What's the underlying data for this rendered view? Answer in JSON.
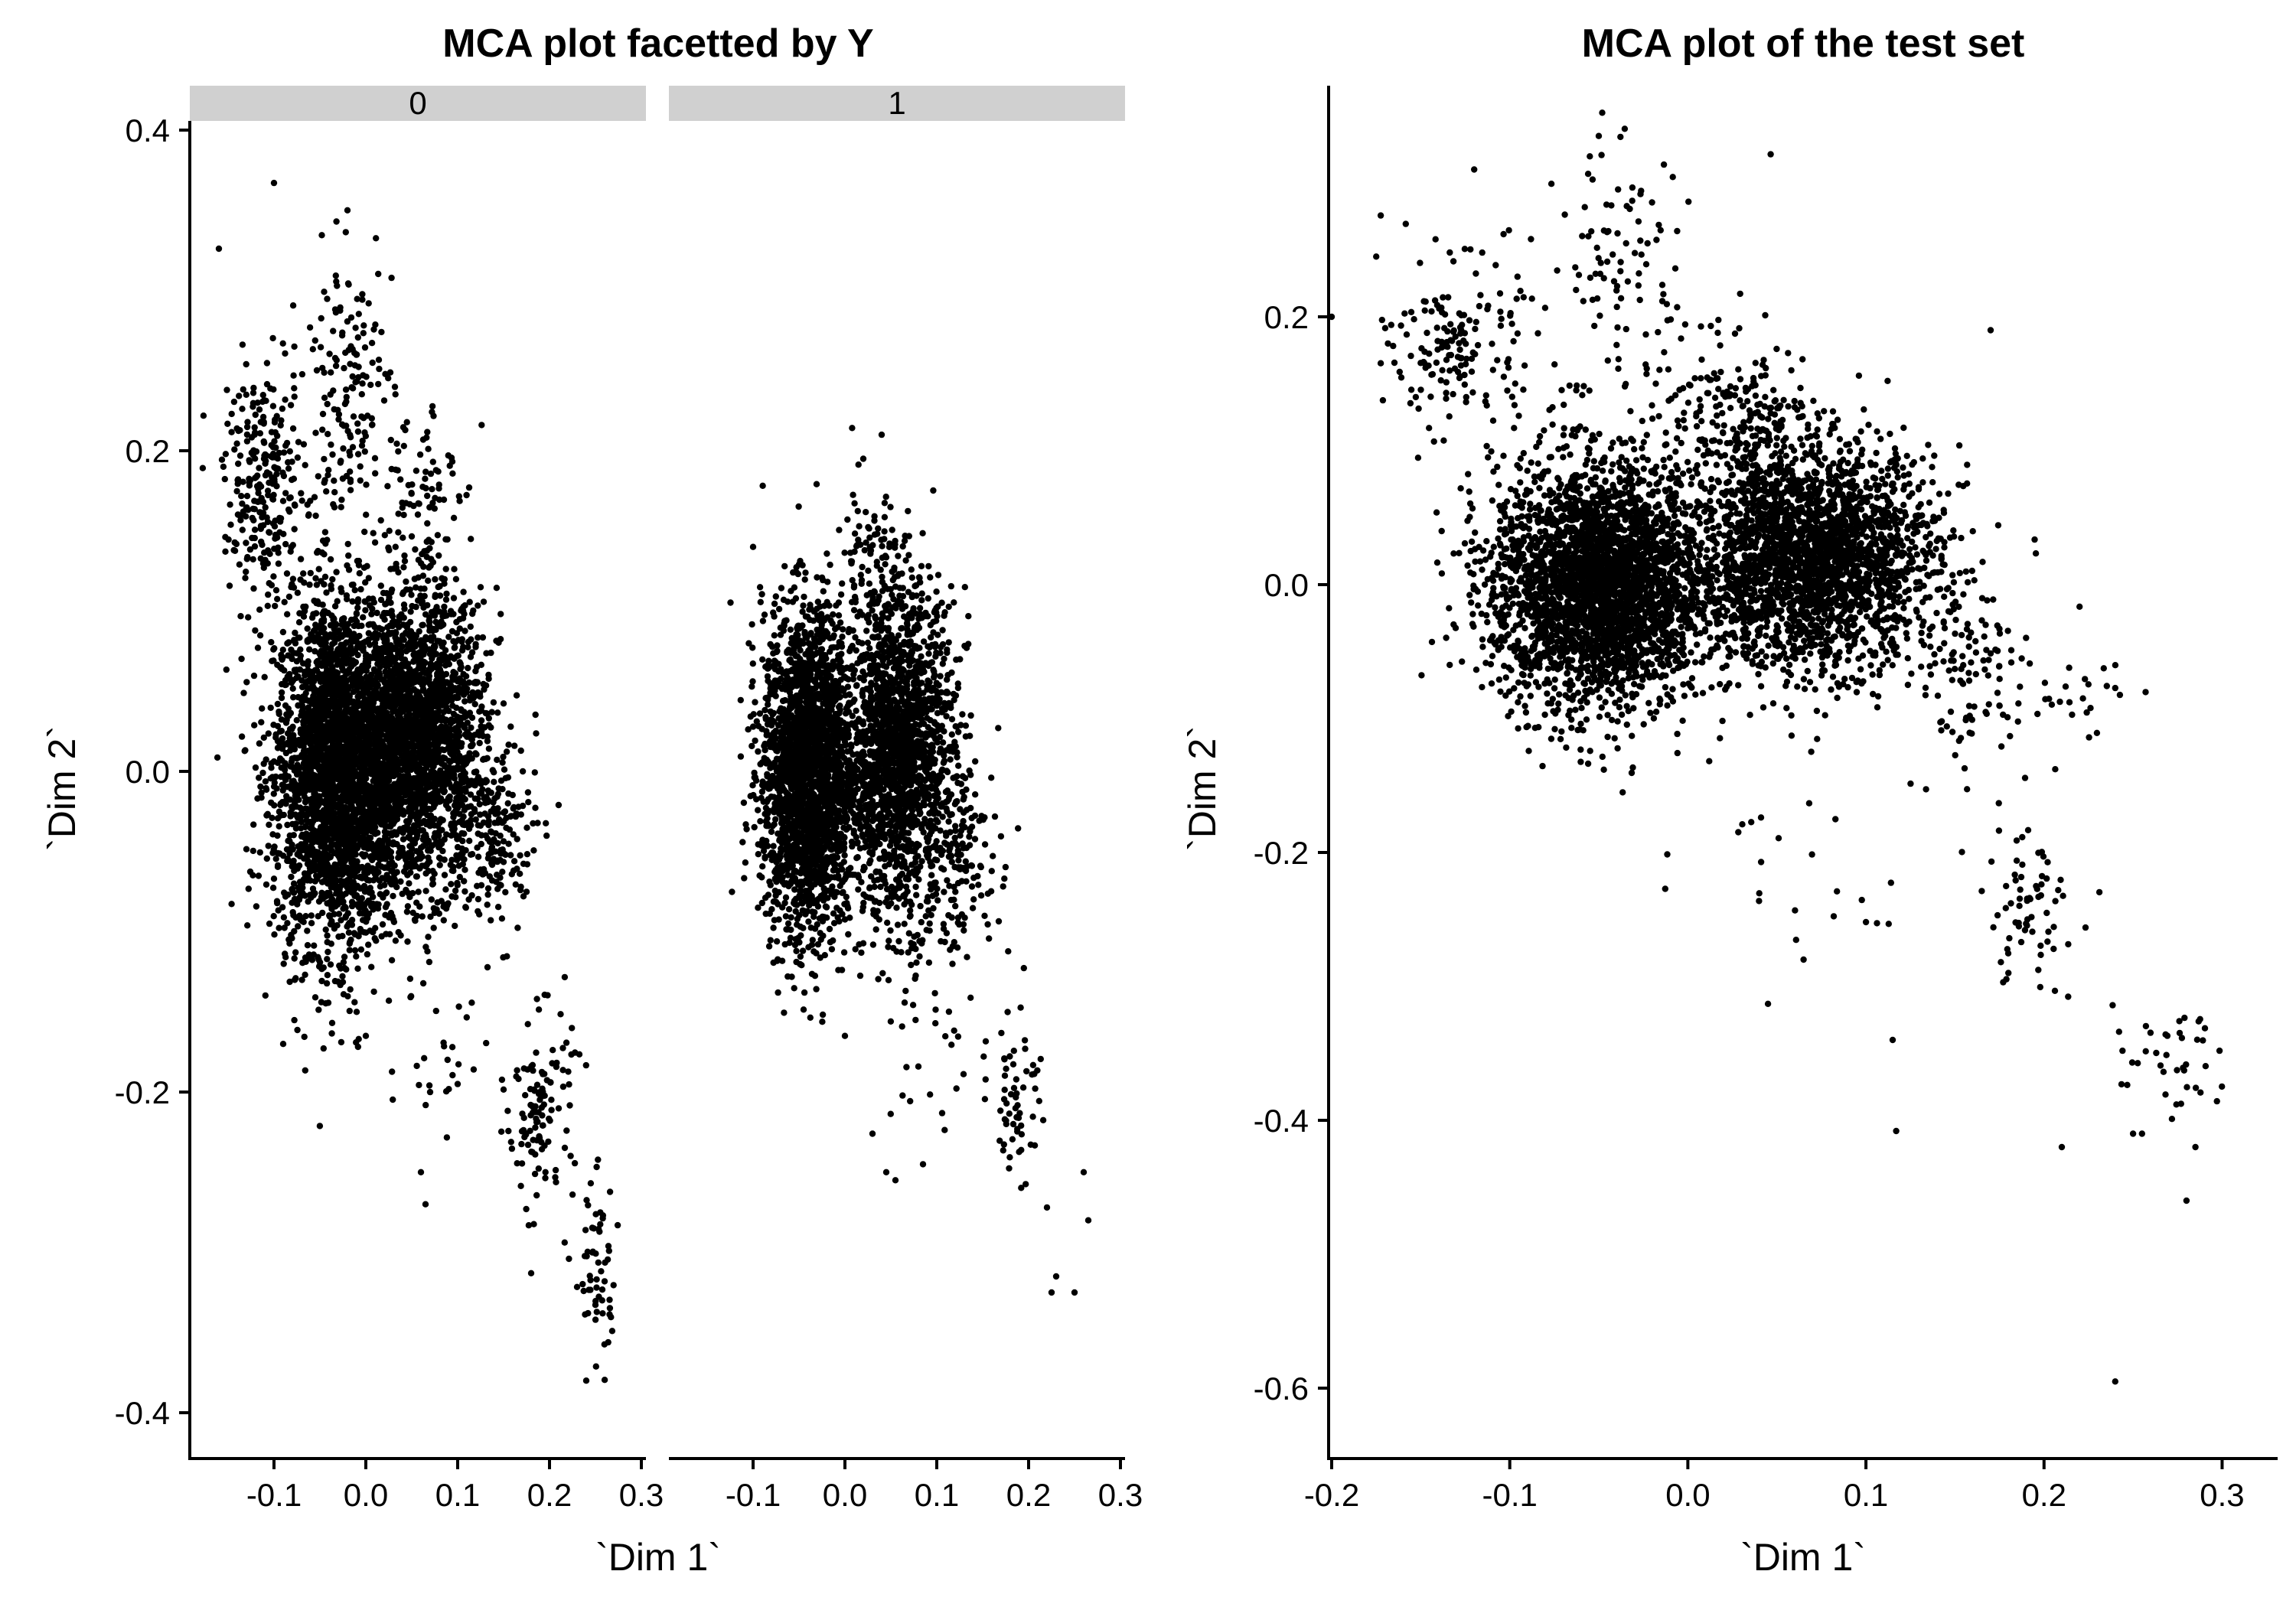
{
  "figure": {
    "panels": [
      {
        "title": "MCA plot facetted by Y",
        "xlabel": "`Dim 1`",
        "ylabel": "`Dim 2`"
      },
      {
        "title": "MCA plot of the test set",
        "xlabel": "`Dim 1`",
        "ylabel": "`Dim 2`"
      }
    ]
  },
  "chart_data": [
    {
      "type": "scatter",
      "title": "MCA plot facetted by Y",
      "xlabel": "`Dim 1`",
      "ylabel": "`Dim 2`",
      "xlim": [
        -0.18,
        0.3
      ],
      "ylim": [
        -0.42,
        0.4
      ],
      "x_ticks": [
        -0.1,
        0.0,
        0.1,
        0.2,
        0.3
      ],
      "x_tick_labels": [
        "-0.1",
        "0.0",
        "0.1",
        "0.2",
        "0.3"
      ],
      "y_ticks": [
        -0.4,
        -0.2,
        0.0,
        0.2,
        0.4
      ],
      "y_tick_labels": [
        "-0.4",
        "-0.2",
        "0.0",
        "0.2",
        "0.4"
      ],
      "grid": false,
      "point_color": "#000000",
      "facets": [
        {
          "label": "0",
          "clusters": [
            {
              "cx": -0.03,
              "cy": 0.0,
              "sx": 0.035,
              "sy": 0.055,
              "n": 3000
            },
            {
              "cx": 0.06,
              "cy": 0.02,
              "sx": 0.035,
              "sy": 0.045,
              "n": 2000
            },
            {
              "cx": -0.11,
              "cy": 0.18,
              "sx": 0.022,
              "sy": 0.035,
              "n": 250
            },
            {
              "cx": -0.02,
              "cy": 0.24,
              "sx": 0.025,
              "sy": 0.04,
              "n": 160
            },
            {
              "cx": 0.06,
              "cy": 0.18,
              "sx": 0.02,
              "sy": 0.03,
              "n": 80
            },
            {
              "cx": 0.14,
              "cy": -0.04,
              "sx": 0.022,
              "sy": 0.03,
              "n": 180
            },
            {
              "cx": 0.19,
              "cy": -0.21,
              "sx": 0.018,
              "sy": 0.03,
              "n": 120
            },
            {
              "cx": 0.25,
              "cy": -0.31,
              "sx": 0.012,
              "sy": 0.03,
              "n": 60
            },
            {
              "cx": 0.08,
              "cy": -0.18,
              "sx": 0.03,
              "sy": 0.03,
              "n": 25
            }
          ],
          "points": [
            {
              "x": -0.16,
              "y": 0.326
            },
            {
              "x": -0.1,
              "y": 0.367
            },
            {
              "x": -0.02,
              "y": 0.35
            },
            {
              "x": 0.06,
              "y": -0.25
            },
            {
              "x": 0.065,
              "y": -0.27
            },
            {
              "x": 0.07,
              "y": -0.2
            },
            {
              "x": 0.1,
              "y": -0.195
            },
            {
              "x": 0.18,
              "y": -0.313
            },
            {
              "x": 0.24,
              "y": -0.38
            },
            {
              "x": -0.09,
              "y": -0.17
            },
            {
              "x": 0.0,
              "y": -0.165
            },
            {
              "x": -0.01,
              "y": -0.15
            }
          ]
        },
        {
          "label": "1",
          "clusters": [
            {
              "cx": -0.04,
              "cy": 0.0,
              "sx": 0.025,
              "sy": 0.05,
              "n": 2400
            },
            {
              "cx": 0.06,
              "cy": 0.01,
              "sx": 0.03,
              "sy": 0.05,
              "n": 1800
            },
            {
              "cx": 0.03,
              "cy": 0.12,
              "sx": 0.02,
              "sy": 0.03,
              "n": 100
            },
            {
              "cx": 0.13,
              "cy": -0.05,
              "sx": 0.02,
              "sy": 0.03,
              "n": 120
            },
            {
              "cx": 0.19,
              "cy": -0.2,
              "sx": 0.012,
              "sy": 0.03,
              "n": 60
            },
            {
              "cx": 0.1,
              "cy": -0.17,
              "sx": 0.04,
              "sy": 0.03,
              "n": 30
            }
          ],
          "points": [
            {
              "x": 0.04,
              "y": 0.21
            },
            {
              "x": 0.02,
              "y": 0.195
            },
            {
              "x": -0.1,
              "y": 0.14
            },
            {
              "x": 0.225,
              "y": -0.325
            },
            {
              "x": 0.25,
              "y": -0.325
            },
            {
              "x": 0.23,
              "y": -0.315
            },
            {
              "x": 0.265,
              "y": -0.28
            },
            {
              "x": 0.055,
              "y": -0.255
            },
            {
              "x": 0.045,
              "y": -0.25
            },
            {
              "x": 0.085,
              "y": -0.245
            },
            {
              "x": 0.03,
              "y": -0.226
            },
            {
              "x": -0.0,
              "y": -0.165
            },
            {
              "x": 0.26,
              "y": -0.25
            },
            {
              "x": 0.22,
              "y": -0.272
            }
          ]
        }
      ]
    },
    {
      "type": "scatter",
      "title": "MCA plot of the test set",
      "xlabel": "`Dim 1`",
      "ylabel": "`Dim 2`",
      "xlim": [
        -0.2,
        0.32
      ],
      "ylim": [
        -0.64,
        0.36
      ],
      "x_ticks": [
        -0.2,
        -0.1,
        0.0,
        0.1,
        0.2,
        0.3
      ],
      "x_tick_labels": [
        "-0.2",
        "-0.1",
        "0.0",
        "0.1",
        "0.2",
        "0.3"
      ],
      "y_ticks": [
        -0.6,
        -0.4,
        -0.2,
        0.0,
        0.2
      ],
      "y_tick_labels": [
        "-0.6",
        "-0.4",
        "-0.2",
        "0.0",
        "0.2"
      ],
      "grid": false,
      "point_color": "#000000",
      "clusters": [
        {
          "cx": -0.05,
          "cy": 0.0,
          "sx": 0.03,
          "sy": 0.045,
          "n": 3000
        },
        {
          "cx": 0.07,
          "cy": 0.02,
          "sx": 0.035,
          "sy": 0.04,
          "n": 2500
        },
        {
          "cx": 0.03,
          "cy": 0.12,
          "sx": 0.02,
          "sy": 0.03,
          "n": 200
        },
        {
          "cx": -0.13,
          "cy": 0.18,
          "sx": 0.018,
          "sy": 0.03,
          "n": 160
        },
        {
          "cx": -0.04,
          "cy": 0.25,
          "sx": 0.02,
          "sy": 0.04,
          "n": 80
        },
        {
          "cx": -0.03,
          "cy": 0.15,
          "sx": 0.04,
          "sy": 0.04,
          "n": 60
        },
        {
          "cx": 0.16,
          "cy": -0.07,
          "sx": 0.02,
          "sy": 0.03,
          "n": 100
        },
        {
          "cx": 0.19,
          "cy": -0.24,
          "sx": 0.015,
          "sy": 0.03,
          "n": 70
        },
        {
          "cx": 0.27,
          "cy": -0.36,
          "sx": 0.015,
          "sy": 0.02,
          "n": 40
        },
        {
          "cx": 0.06,
          "cy": -0.2,
          "sx": 0.04,
          "sy": 0.04,
          "n": 25
        },
        {
          "cx": 0.22,
          "cy": -0.08,
          "sx": 0.015,
          "sy": 0.015,
          "n": 20
        }
      ],
      "points": [
        {
          "x": -0.05,
          "y": 0.335
        },
        {
          "x": -0.12,
          "y": 0.31
        },
        {
          "x": 0.17,
          "y": 0.19
        },
        {
          "x": -0.2,
          "y": 0.2
        },
        {
          "x": -0.175,
          "y": 0.245
        },
        {
          "x": 0.24,
          "y": -0.595
        },
        {
          "x": 0.28,
          "y": -0.46
        },
        {
          "x": 0.285,
          "y": -0.42
        },
        {
          "x": 0.21,
          "y": -0.42
        },
        {
          "x": 0.117,
          "y": -0.408
        },
        {
          "x": 0.115,
          "y": -0.34
        },
        {
          "x": 0.045,
          "y": -0.313
        },
        {
          "x": 0.065,
          "y": -0.28
        },
        {
          "x": 0.1,
          "y": -0.252
        },
        {
          "x": 0.18,
          "y": -0.29
        },
        {
          "x": 0.25,
          "y": -0.41
        },
        {
          "x": 0.255,
          "y": -0.41
        }
      ]
    }
  ]
}
